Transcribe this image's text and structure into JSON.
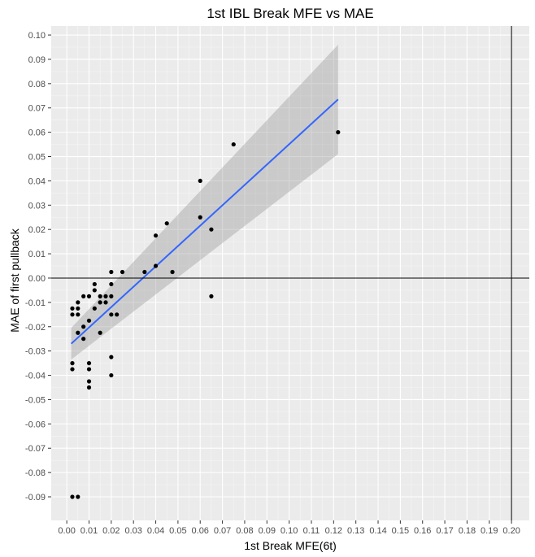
{
  "chart_data": {
    "type": "scatter",
    "title": "1st IBL Break MFE vs MAE",
    "xlabel": "1st Break MFE(6t)",
    "ylabel": "MAE of first pullback",
    "xlim": [
      -0.007,
      0.208
    ],
    "ylim": [
      -0.0997,
      0.1037
    ],
    "x_ticks": [
      0.0,
      0.01,
      0.02,
      0.03,
      0.04,
      0.05,
      0.06,
      0.07,
      0.08,
      0.09,
      0.1,
      0.11,
      0.12,
      0.13,
      0.14,
      0.15,
      0.16,
      0.17,
      0.18,
      0.19,
      0.2
    ],
    "x_tick_labels": [
      "0.00",
      "0.01",
      "0.02",
      "0.03",
      "0.04",
      "0.05",
      "0.06",
      "0.07",
      "0.08",
      "0.09",
      "0.10",
      "0.11",
      "0.12",
      "0.13",
      "0.14",
      "0.15",
      "0.16",
      "0.17",
      "0.18",
      "0.19",
      "0.20"
    ],
    "y_ticks": [
      0.1,
      0.09,
      0.08,
      0.07,
      0.06,
      0.05,
      0.04,
      0.03,
      0.02,
      0.01,
      0.0,
      -0.01,
      -0.02,
      -0.03,
      -0.04,
      -0.05,
      -0.06,
      -0.07,
      -0.08,
      -0.09
    ],
    "y_tick_labels": [
      "0.10",
      "0.09",
      "0.08",
      "0.07",
      "0.06",
      "0.05",
      "0.04",
      "0.03",
      "0.02",
      "0.01",
      "0.00",
      "-0.01",
      "-0.02",
      "-0.03",
      "-0.04",
      "-0.05",
      "-0.06",
      "-0.07",
      "-0.08",
      "-0.09"
    ],
    "grid": true,
    "reference_lines": {
      "horizontal_y": 0.0,
      "vertical_x": 0.2
    },
    "points": [
      {
        "x": 0.122,
        "y": 0.06
      },
      {
        "x": 0.075,
        "y": 0.055
      },
      {
        "x": 0.06,
        "y": 0.04
      },
      {
        "x": 0.06,
        "y": 0.025
      },
      {
        "x": 0.065,
        "y": 0.02
      },
      {
        "x": 0.045,
        "y": 0.0225
      },
      {
        "x": 0.04,
        "y": 0.0175
      },
      {
        "x": 0.04,
        "y": 0.005
      },
      {
        "x": 0.035,
        "y": 0.0025
      },
      {
        "x": 0.0475,
        "y": 0.0025
      },
      {
        "x": 0.025,
        "y": 0.0025
      },
      {
        "x": 0.02,
        "y": 0.0025
      },
      {
        "x": 0.065,
        "y": -0.0075
      },
      {
        "x": 0.0125,
        "y": -0.0025
      },
      {
        "x": 0.0125,
        "y": -0.005
      },
      {
        "x": 0.0075,
        "y": -0.0075
      },
      {
        "x": 0.01,
        "y": -0.0075
      },
      {
        "x": 0.015,
        "y": -0.0075
      },
      {
        "x": 0.0175,
        "y": -0.0075
      },
      {
        "x": 0.02,
        "y": -0.0075
      },
      {
        "x": 0.02,
        "y": -0.0025
      },
      {
        "x": 0.015,
        "y": -0.01
      },
      {
        "x": 0.0175,
        "y": -0.01
      },
      {
        "x": 0.0025,
        "y": -0.0125
      },
      {
        "x": 0.005,
        "y": -0.0125
      },
      {
        "x": 0.0125,
        "y": -0.0125
      },
      {
        "x": 0.0025,
        "y": -0.015
      },
      {
        "x": 0.005,
        "y": -0.015
      },
      {
        "x": 0.02,
        "y": -0.015
      },
      {
        "x": 0.0225,
        "y": -0.015
      },
      {
        "x": 0.01,
        "y": -0.0175
      },
      {
        "x": 0.005,
        "y": -0.01
      },
      {
        "x": 0.0075,
        "y": -0.02
      },
      {
        "x": 0.005,
        "y": -0.0225
      },
      {
        "x": 0.015,
        "y": -0.0225
      },
      {
        "x": 0.0075,
        "y": -0.025
      },
      {
        "x": 0.02,
        "y": -0.0325
      },
      {
        "x": 0.0025,
        "y": -0.035
      },
      {
        "x": 0.01,
        "y": -0.035
      },
      {
        "x": 0.0025,
        "y": -0.0375
      },
      {
        "x": 0.01,
        "y": -0.0375
      },
      {
        "x": 0.02,
        "y": -0.04
      },
      {
        "x": 0.01,
        "y": -0.0425
      },
      {
        "x": 0.01,
        "y": -0.045
      },
      {
        "x": 0.0025,
        "y": -0.09
      },
      {
        "x": 0.005,
        "y": -0.09
      }
    ],
    "fit_line": {
      "method": "linear",
      "x": [
        0.002,
        0.122
      ],
      "y": [
        -0.027,
        0.0735
      ],
      "ci_lower": [
        -0.0335,
        0.051
      ],
      "ci_upper": [
        -0.0205,
        0.096
      ],
      "color": "#3366ff"
    },
    "colors": {
      "panel": "#ebebeb",
      "grid_major": "#ffffff",
      "grid_minor": "#f5f5f5",
      "points": "#000000",
      "ribbon": "#999999",
      "reference": "#000000"
    }
  }
}
